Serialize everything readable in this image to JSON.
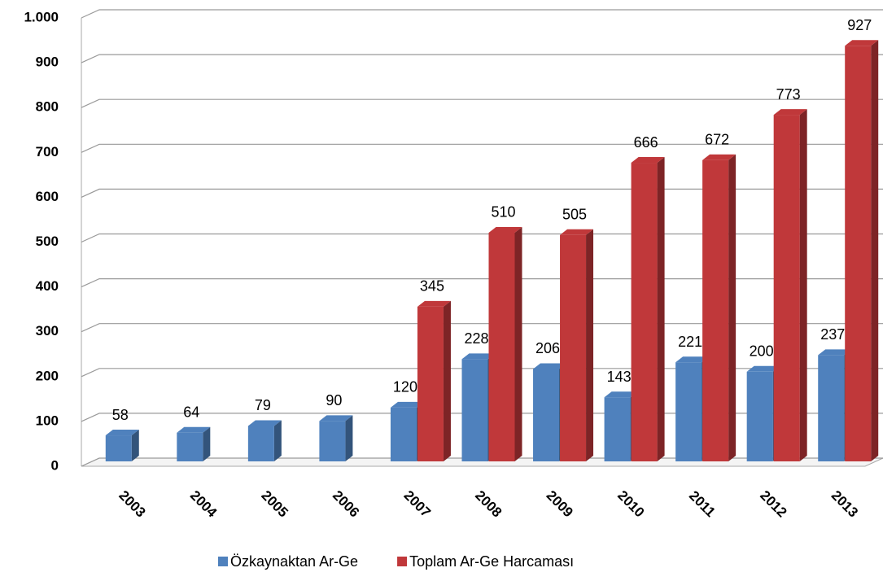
{
  "chart_data": {
    "type": "bar",
    "categories": [
      "2003",
      "2004",
      "2005",
      "2006",
      "2007",
      "2008",
      "2009",
      "2010",
      "2011",
      "2012",
      "2013"
    ],
    "series": [
      {
        "name": "Özkaynaktan Ar-Ge",
        "color": "#4f81bd",
        "values": [
          58,
          64,
          79,
          90,
          120,
          228,
          206,
          143,
          221,
          200,
          237
        ]
      },
      {
        "name": "Toplam Ar-Ge Harcaması",
        "color": "#c0383a",
        "values": [
          null,
          null,
          null,
          null,
          345,
          510,
          505,
          666,
          672,
          773,
          927
        ]
      }
    ],
    "ylim": [
      0,
      1000
    ],
    "yticks": [
      0,
      100,
      200,
      300,
      400,
      500,
      600,
      700,
      800,
      900,
      {
        "value": 1000,
        "label": "1.000"
      }
    ],
    "grid": true,
    "legend": "bottom"
  }
}
